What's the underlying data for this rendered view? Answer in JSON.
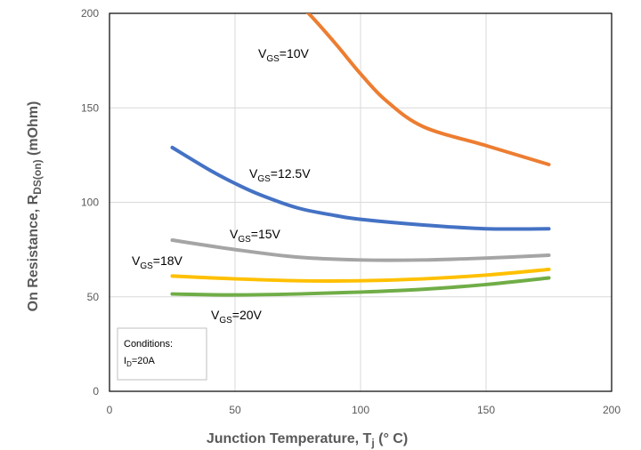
{
  "chart_data": {
    "type": "line",
    "xlabel": {
      "prefix": "Junction Temperature, T",
      "sub": "j",
      "suffix": " (° C)"
    },
    "ylabel": {
      "prefix": "On Resistance, R",
      "sub": "DS(on)",
      "suffix": " (mOhm)"
    },
    "xlim": [
      0,
      200
    ],
    "ylim": [
      0,
      200
    ],
    "xticks": [
      0,
      50,
      100,
      150,
      200
    ],
    "yticks": [
      0,
      50,
      100,
      150,
      200
    ],
    "grid": true,
    "series": [
      {
        "name": "VGS=10V",
        "label": {
          "prefix": "V",
          "sub": "GS",
          "suffix": "=10V"
        },
        "color": "#ED7D31",
        "x": [
          75,
          80,
          90,
          100,
          110,
          125,
          150,
          175
        ],
        "y": [
          205,
          199,
          184,
          168,
          154,
          140,
          130,
          120
        ]
      },
      {
        "name": "VGS=12.5V",
        "label": {
          "prefix": "V",
          "sub": "GS",
          "suffix": "=12.5V"
        },
        "color": "#4472C4",
        "x": [
          25,
          40,
          50,
          60,
          75,
          90,
          100,
          125,
          150,
          175
        ],
        "y": [
          129,
          117,
          110,
          104,
          97,
          93,
          91,
          88,
          86,
          86
        ]
      },
      {
        "name": "VGS=15V",
        "label": {
          "prefix": "V",
          "sub": "GS",
          "suffix": "=15V"
        },
        "color": "#A5A5A5",
        "x": [
          25,
          50,
          75,
          100,
          125,
          150,
          175
        ],
        "y": [
          80,
          75,
          71,
          69.5,
          69.5,
          70.5,
          72
        ]
      },
      {
        "name": "VGS=18V",
        "label": {
          "prefix": "V",
          "sub": "GS",
          "suffix": "=18V"
        },
        "color": "#FFC000",
        "x": [
          25,
          50,
          75,
          100,
          125,
          150,
          175
        ],
        "y": [
          61,
          59.5,
          58.5,
          58.5,
          59.5,
          61.5,
          64.5
        ]
      },
      {
        "name": "VGS=20V",
        "label": {
          "prefix": "V",
          "sub": "GS",
          "suffix": "=20V"
        },
        "color": "#70AD47",
        "x": [
          25,
          50,
          75,
          100,
          125,
          150,
          175
        ],
        "y": [
          51.5,
          51,
          51.5,
          52.5,
          54,
          56.5,
          60
        ]
      }
    ],
    "annotations": {
      "conditions_title": "Conditions:",
      "conditions_line": {
        "prefix": "I",
        "sub": "D",
        "suffix": "=20A"
      }
    }
  }
}
